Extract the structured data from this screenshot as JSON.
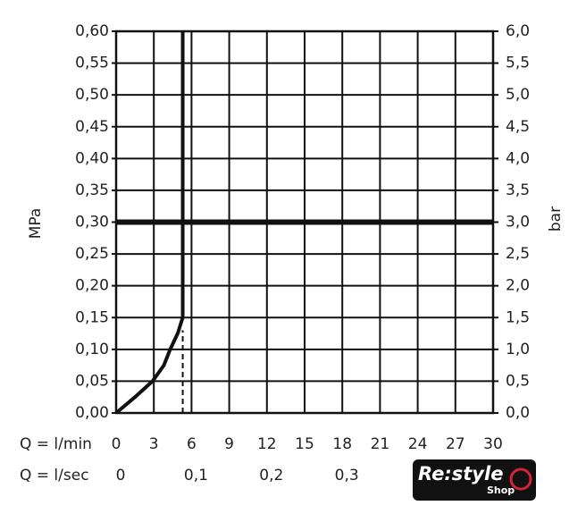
{
  "chart_data": {
    "type": "line",
    "y_label": "MPa",
    "y2_label": "bar",
    "x_label": "Q = l/min",
    "x2_label": "Q = l/sec",
    "xlim": [
      0,
      30
    ],
    "xticks": [
      0,
      3,
      6,
      9,
      12,
      15,
      18,
      21,
      24,
      27,
      30
    ],
    "x2lim": [
      0,
      0.5
    ],
    "x2ticks": [
      0,
      {
        "value": 0.1,
        "label": "0,1"
      },
      {
        "value": 0.2,
        "label": "0,2"
      },
      {
        "value": 0.3,
        "label": "0,3"
      }
    ],
    "ylim": [
      0,
      0.6
    ],
    "yticks": [
      {
        "value": 0,
        "label": "0,00"
      },
      {
        "value": 0.05,
        "label": "0,05"
      },
      {
        "value": 0.1,
        "label": "0,10"
      },
      {
        "value": 0.15,
        "label": "0,15"
      },
      {
        "value": 0.2,
        "label": "0,20"
      },
      {
        "value": 0.25,
        "label": "0,25"
      },
      {
        "value": 0.3,
        "label": "0,30"
      },
      {
        "value": 0.35,
        "label": "0,35"
      },
      {
        "value": 0.4,
        "label": "0,40"
      },
      {
        "value": 0.45,
        "label": "0,45"
      },
      {
        "value": 0.5,
        "label": "0,50"
      },
      {
        "value": 0.55,
        "label": "0,55"
      },
      {
        "value": 0.6,
        "label": "0,60"
      }
    ],
    "y2lim": [
      0,
      6
    ],
    "y2ticks": [
      {
        "value": 0,
        "label": "0,0"
      },
      {
        "value": 0.5,
        "label": "0,5"
      },
      {
        "value": 1,
        "label": "1,0"
      },
      {
        "value": 1.5,
        "label": "1,5"
      },
      {
        "value": 2,
        "label": "2,0"
      },
      {
        "value": 2.5,
        "label": "2,5"
      },
      {
        "value": 3,
        "label": "3,0"
      },
      {
        "value": 3.5,
        "label": "3,5"
      },
      {
        "value": 4,
        "label": "4,0"
      },
      {
        "value": 4.5,
        "label": "4,5"
      },
      {
        "value": 5,
        "label": "5,0"
      },
      {
        "value": 5.5,
        "label": "5,5"
      },
      {
        "value": 6,
        "label": "6,0"
      }
    ],
    "grid": true,
    "reference_line": {
      "y": 0.3,
      "color": "#111111"
    },
    "series": [
      {
        "color": "#111111",
        "dashed": false,
        "x": [
          0,
          1.5,
          2.9,
          3.8,
          4.3,
          4.9,
          5.3,
          5.3
        ],
        "values": [
          0,
          0.025,
          0.05,
          0.075,
          0.1,
          0.125,
          0.15,
          0.6
        ]
      },
      {
        "color": "#111111",
        "dashed": true,
        "x": [
          5.3,
          5.3
        ],
        "values": [
          0,
          0.13
        ]
      }
    ]
  },
  "logo": {
    "name": "Re:style",
    "sub": "Shop"
  }
}
